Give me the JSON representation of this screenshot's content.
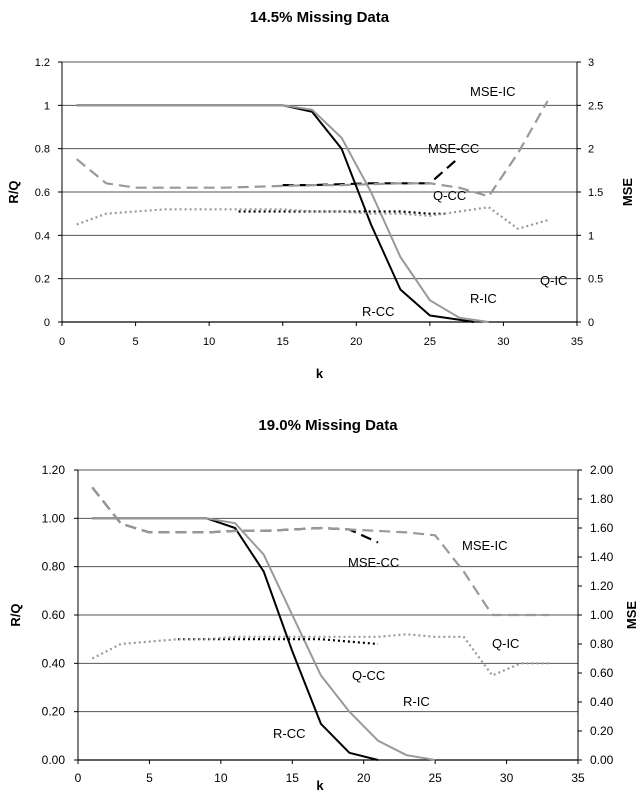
{
  "chart_data": [
    {
      "type": "line",
      "title": "14.5% Missing Data",
      "xlabel": "k",
      "ylabel": "R/Q",
      "y2label": "MSE",
      "xlim": [
        0,
        35
      ],
      "ylim": [
        0,
        1.2
      ],
      "y2lim": [
        0,
        3
      ],
      "xticks": [
        "0",
        "5",
        "10",
        "15",
        "20",
        "25",
        "30",
        "35"
      ],
      "yticks": [
        "0",
        "0.2",
        "0.4",
        "0.6",
        "0.8",
        "1",
        "1.2"
      ],
      "y2ticks": [
        "0",
        "0.5",
        "1",
        "1.5",
        "2",
        "2.5",
        "3"
      ],
      "grid": "horizontal",
      "series": [
        {
          "name": "R-CC",
          "axis": "left",
          "color": "#000000",
          "dash": "solid",
          "x": [
            1,
            5,
            10,
            15,
            17,
            19,
            21,
            23,
            25,
            27,
            28
          ],
          "y": [
            1,
            1,
            1,
            1,
            0.97,
            0.8,
            0.45,
            0.15,
            0.03,
            0.01,
            0
          ]
        },
        {
          "name": "R-IC",
          "axis": "left",
          "color": "#999999",
          "dash": "solid",
          "x": [
            1,
            5,
            10,
            15,
            17,
            19,
            21,
            23,
            25,
            27,
            29
          ],
          "y": [
            1,
            1,
            1,
            1,
            0.98,
            0.85,
            0.6,
            0.3,
            0.1,
            0.02,
            0
          ]
        },
        {
          "name": "Q-CC",
          "axis": "left",
          "color": "#000000",
          "dash": "dotted",
          "x": [
            12,
            15,
            17,
            19,
            21,
            23,
            25,
            26
          ],
          "y": [
            0.51,
            0.51,
            0.51,
            0.51,
            0.51,
            0.51,
            0.5,
            0.5
          ]
        },
        {
          "name": "Q-IC",
          "axis": "left",
          "color": "#999999",
          "dash": "dotted",
          "x": [
            1,
            3,
            5,
            7,
            9,
            11,
            13,
            15,
            17,
            19,
            21,
            23,
            25,
            27,
            29,
            31,
            33
          ],
          "y": [
            0.45,
            0.5,
            0.51,
            0.52,
            0.52,
            0.52,
            0.52,
            0.52,
            0.51,
            0.51,
            0.5,
            0.5,
            0.49,
            0.51,
            0.53,
            0.43,
            0.47
          ]
        },
        {
          "name": "MSE-CC",
          "axis": "right",
          "color": "#000000",
          "dash": "dashed",
          "x": [
            15,
            17,
            19,
            21,
            23,
            25,
            27
          ],
          "y": [
            1.58,
            1.58,
            1.59,
            1.6,
            1.6,
            1.6,
            1.9
          ]
        },
        {
          "name": "MSE-IC",
          "axis": "right",
          "color": "#999999",
          "dash": "dashed",
          "x": [
            1,
            3,
            5,
            7,
            9,
            11,
            13,
            15,
            17,
            19,
            21,
            23,
            25,
            27,
            29,
            31,
            33
          ],
          "y": [
            1.88,
            1.6,
            1.55,
            1.55,
            1.55,
            1.55,
            1.56,
            1.57,
            1.58,
            1.58,
            1.59,
            1.6,
            1.6,
            1.55,
            1.45,
            1.95,
            2.55
          ]
        }
      ],
      "annotations": [
        "MSE-IC",
        "MSE-CC",
        "Q-CC",
        "Q-IC",
        "R-CC",
        "R-IC"
      ]
    },
    {
      "type": "line",
      "title": "19.0% Missing Data",
      "xlabel": "k",
      "ylabel": "R/Q",
      "y2label": "MSE",
      "xlim": [
        0,
        35
      ],
      "ylim": [
        0,
        1.2
      ],
      "y2lim": [
        0,
        2
      ],
      "xticks": [
        "0",
        "5",
        "10",
        "15",
        "20",
        "25",
        "30",
        "35"
      ],
      "yticks": [
        "0.00",
        "0.20",
        "0.40",
        "0.60",
        "0.80",
        "1.00",
        "1.20"
      ],
      "y2ticks": [
        "0.00",
        "0.20",
        "0.40",
        "0.60",
        "0.80",
        "1.00",
        "1.20",
        "1.40",
        "1.60",
        "1.80",
        "2.00"
      ],
      "grid": "horizontal",
      "series": [
        {
          "name": "R-CC",
          "axis": "left",
          "color": "#000000",
          "dash": "solid",
          "x": [
            1,
            5,
            9,
            11,
            13,
            15,
            17,
            19,
            21
          ],
          "y": [
            1,
            1,
            1,
            0.96,
            0.78,
            0.45,
            0.15,
            0.03,
            0
          ]
        },
        {
          "name": "R-IC",
          "axis": "left",
          "color": "#999999",
          "dash": "solid",
          "x": [
            1,
            5,
            9,
            11,
            13,
            15,
            17,
            19,
            21,
            23,
            25
          ],
          "y": [
            1,
            1,
            1,
            0.98,
            0.85,
            0.6,
            0.35,
            0.2,
            0.08,
            0.02,
            0
          ]
        },
        {
          "name": "Q-CC",
          "axis": "left",
          "color": "#000000",
          "dash": "dotted",
          "x": [
            7,
            9,
            11,
            13,
            15,
            17,
            19,
            21
          ],
          "y": [
            0.5,
            0.5,
            0.5,
            0.5,
            0.5,
            0.5,
            0.49,
            0.48
          ]
        },
        {
          "name": "Q-IC",
          "axis": "left",
          "color": "#999999",
          "dash": "dotted",
          "x": [
            1,
            3,
            5,
            7,
            9,
            11,
            13,
            15,
            17,
            19,
            21,
            23,
            25,
            27,
            29,
            31,
            33
          ],
          "y": [
            0.42,
            0.48,
            0.49,
            0.5,
            0.5,
            0.51,
            0.51,
            0.51,
            0.51,
            0.51,
            0.51,
            0.52,
            0.51,
            0.51,
            0.35,
            0.4,
            0.4
          ]
        },
        {
          "name": "MSE-CC",
          "axis": "right",
          "color": "#000000",
          "dash": "dashed",
          "x": [
            1,
            3,
            5,
            7,
            9,
            11,
            13,
            15,
            17,
            19,
            21
          ],
          "y": [
            1.88,
            1.63,
            1.57,
            1.57,
            1.57,
            1.58,
            1.58,
            1.59,
            1.6,
            1.59,
            1.5
          ]
        },
        {
          "name": "MSE-IC",
          "axis": "right",
          "color": "#999999",
          "dash": "dashed",
          "x": [
            1,
            3,
            5,
            7,
            9,
            11,
            13,
            15,
            17,
            19,
            21,
            23,
            25,
            27,
            29,
            31,
            33
          ],
          "y": [
            1.88,
            1.63,
            1.57,
            1.57,
            1.57,
            1.58,
            1.58,
            1.59,
            1.6,
            1.59,
            1.58,
            1.57,
            1.55,
            1.3,
            1.0,
            1.0,
            1.0
          ]
        }
      ],
      "annotations": [
        "MSE-CC",
        "MSE-IC",
        "Q-CC",
        "Q-IC",
        "R-CC",
        "R-IC"
      ]
    }
  ]
}
